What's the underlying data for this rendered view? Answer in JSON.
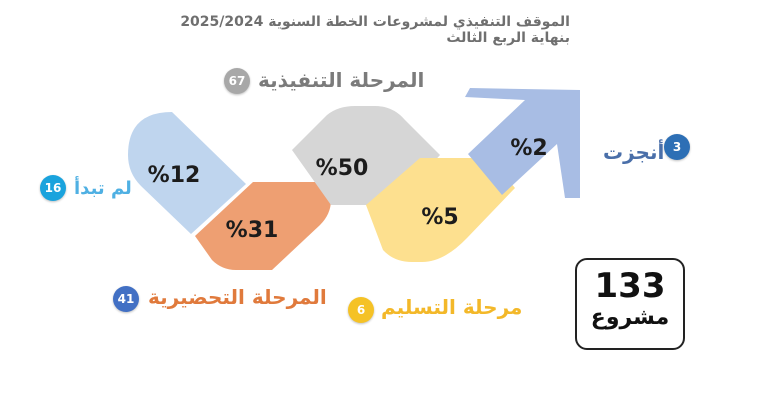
{
  "title": "الموقف التنفيذي لمشروعات الخطة السنوية 2025/2024 بنهاية الربع الثالث",
  "stages": {
    "not_started": {
      "label": "لم تبدأ",
      "count": "16",
      "percent": "%12",
      "color": "#bfd5ee",
      "circle_color": "#1aa3dd",
      "label_color": "#4fb0e3"
    },
    "preparatory": {
      "label": "المرحلة التحضيرية",
      "count": "41",
      "percent": "%31",
      "color": "#ee9f72",
      "circle_color": "#4270c4",
      "label_color": "#e07a3c"
    },
    "executive": {
      "label": "المرحلة التنفيذية",
      "count": "67",
      "percent": "%50",
      "color": "#d6d6d6",
      "circle_color": "#a8a8a8",
      "label_color": "#7b7b7b"
    },
    "delivery": {
      "label": "مرحلة التسليم",
      "count": "6",
      "percent": "%5",
      "color": "#fde08f",
      "circle_color": "#f5c226",
      "label_color": "#f3b829"
    },
    "completed": {
      "label": "أنجزت",
      "count": "3",
      "percent": "%2",
      "color": "#a8bde4",
      "circle_color": "#2d6fb5",
      "label_color": "#4a6fa9"
    }
  },
  "total": {
    "value": "133",
    "unit": "مشروع"
  }
}
